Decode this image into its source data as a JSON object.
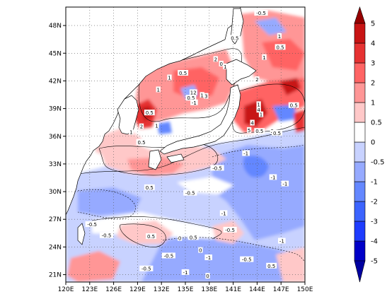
{
  "chart_data": {
    "type": "heatmap",
    "title": "",
    "xlabel": "",
    "ylabel": "",
    "x_ticks": [
      "120E",
      "123E",
      "126E",
      "129E",
      "132E",
      "135E",
      "138E",
      "141E",
      "144E",
      "147E",
      "150E"
    ],
    "y_ticks": [
      "21N",
      "24N",
      "27N",
      "30N",
      "33N",
      "36N",
      "39N",
      "42N",
      "45N",
      "48N"
    ],
    "xlim": [
      120,
      150
    ],
    "ylim": [
      20.2,
      50
    ],
    "grid": true,
    "colorbar": {
      "labels": [
        "-5",
        "-4",
        "-3",
        "-2",
        "-1",
        "-0.5",
        "0",
        "0.5",
        "1",
        "2",
        "3",
        "4",
        "5"
      ],
      "bands": [
        {
          "low": -5,
          "high": -4,
          "color": "#0000c8"
        },
        {
          "low": -4,
          "high": -3,
          "color": "#1e3cff"
        },
        {
          "low": -3,
          "high": -2,
          "color": "#3c64ff"
        },
        {
          "low": -2,
          "high": -1,
          "color": "#6487ff"
        },
        {
          "low": -1,
          "high": -0.5,
          "color": "#96aaff"
        },
        {
          "low": -0.5,
          "high": 0,
          "color": "#c8d2ff"
        },
        {
          "low": 0,
          "high": 0.5,
          "color": "#ffffff"
        },
        {
          "low": 0.5,
          "high": 1,
          "color": "#ffc8c8"
        },
        {
          "low": 1,
          "high": 2,
          "color": "#ff9696"
        },
        {
          "low": 2,
          "high": 3,
          "color": "#ff6464"
        },
        {
          "low": 3,
          "high": 4,
          "color": "#e63232"
        },
        {
          "low": 4,
          "high": 5,
          "color": "#c81414"
        }
      ],
      "extend_low_color": "#0000a0",
      "extend_high_color": "#960000"
    },
    "contour_labels": [
      {
        "text": "-0.5",
        "lon": 144.5,
        "lat": 49.3
      },
      {
        "text": "0.5",
        "lon": 141.2,
        "lat": 46.6
      },
      {
        "text": "1",
        "lon": 146.8,
        "lat": 46.8
      },
      {
        "text": "0.5",
        "lon": 146.9,
        "lat": 45.6
      },
      {
        "text": "1",
        "lon": 144.9,
        "lat": 44.5
      },
      {
        "text": "2",
        "lon": 138.8,
        "lat": 44.3
      },
      {
        "text": "0",
        "lon": 139.5,
        "lat": 43.8
      },
      {
        "text": "1",
        "lon": 140.0,
        "lat": 43.5
      },
      {
        "text": "0.5",
        "lon": 134.7,
        "lat": 42.8
      },
      {
        "text": "1",
        "lon": 133.0,
        "lat": 42.3
      },
      {
        "text": "2",
        "lon": 144.0,
        "lat": 42.1
      },
      {
        "text": "1",
        "lon": 135.8,
        "lat": 40.7
      },
      {
        "text": "1",
        "lon": 131.6,
        "lat": 41.0
      },
      {
        "text": "2",
        "lon": 136.2,
        "lat": 40.7
      },
      {
        "text": "1",
        "lon": 137.1,
        "lat": 40.4
      },
      {
        "text": "3",
        "lon": 137.6,
        "lat": 40.3
      },
      {
        "text": "0.5",
        "lon": 135.7,
        "lat": 40.1
      },
      {
        "text": "-1",
        "lon": 136.1,
        "lat": 39.6
      },
      {
        "text": "1",
        "lon": 144.2,
        "lat": 39.4
      },
      {
        "text": "4",
        "lon": 144.2,
        "lat": 38.8
      },
      {
        "text": "0.5",
        "lon": 148.6,
        "lat": 39.3
      },
      {
        "text": "0.5",
        "lon": 130.5,
        "lat": 38.5
      },
      {
        "text": "1",
        "lon": 144.5,
        "lat": 38.3
      },
      {
        "text": "4",
        "lon": 143.4,
        "lat": 37.4
      },
      {
        "text": "2",
        "lon": 129.5,
        "lat": 37.0
      },
      {
        "text": "1",
        "lon": 131.4,
        "lat": 37.1
      },
      {
        "text": "5",
        "lon": 143.0,
        "lat": 36.6
      },
      {
        "text": "0.5",
        "lon": 144.3,
        "lat": 36.5
      },
      {
        "text": "2",
        "lon": 145.9,
        "lat": 36.5
      },
      {
        "text": "0.5",
        "lon": 146.5,
        "lat": 36.3
      },
      {
        "text": "1",
        "lon": 128.2,
        "lat": 36.4
      },
      {
        "text": "0.5",
        "lon": 129.5,
        "lat": 35.3
      },
      {
        "text": "-1",
        "lon": 142.6,
        "lat": 34.1
      },
      {
        "text": "-0.5",
        "lon": 139.0,
        "lat": 32.5
      },
      {
        "text": "-1",
        "lon": 146.0,
        "lat": 31.5
      },
      {
        "text": "-0.5",
        "lon": 135.6,
        "lat": 29.8
      },
      {
        "text": "0.5",
        "lon": 130.5,
        "lat": 30.4
      },
      {
        "text": "-1",
        "lon": 147.5,
        "lat": 30.8
      },
      {
        "text": "-1",
        "lon": 139.8,
        "lat": 27.6
      },
      {
        "text": "-0.5",
        "lon": 140.6,
        "lat": 25.8
      },
      {
        "text": "-0.5",
        "lon": 123.3,
        "lat": 26.4
      },
      {
        "text": "-0.5",
        "lon": 125.1,
        "lat": 25.2
      },
      {
        "text": "0.5",
        "lon": 130.7,
        "lat": 25.1
      },
      {
        "text": "0",
        "lon": 134.3,
        "lat": 24.9
      },
      {
        "text": "0.5",
        "lon": 136.0,
        "lat": 25.0
      },
      {
        "text": "-1",
        "lon": 147.1,
        "lat": 24.6
      },
      {
        "text": "0",
        "lon": 136.9,
        "lat": 23.6
      },
      {
        "text": "-0.5",
        "lon": 132.9,
        "lat": 23.0
      },
      {
        "text": "-1",
        "lon": 137.9,
        "lat": 22.8
      },
      {
        "text": "-0.5",
        "lon": 142.7,
        "lat": 22.6
      },
      {
        "text": "-0.5",
        "lon": 130.1,
        "lat": 21.6
      },
      {
        "text": "-1",
        "lon": 135.0,
        "lat": 21.2
      },
      {
        "text": "0",
        "lon": 137.8,
        "lat": 20.8
      },
      {
        "text": "0.5",
        "lon": 145.8,
        "lat": 21.9
      }
    ]
  }
}
